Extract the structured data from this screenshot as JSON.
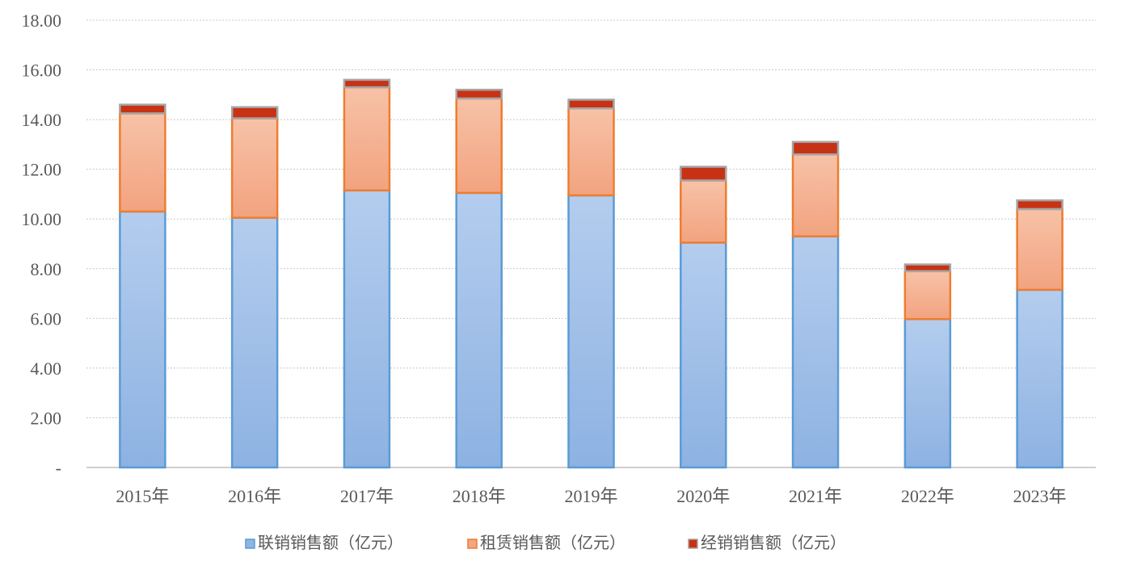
{
  "chart_data": {
    "type": "bar",
    "stacked": true,
    "categories": [
      "2015年",
      "2016年",
      "2017年",
      "2018年",
      "2019年",
      "2020年",
      "2021年",
      "2022年",
      "2023年"
    ],
    "series": [
      {
        "name": "联销销售额（亿元）",
        "values": [
          10.3,
          10.05,
          11.15,
          11.05,
          10.95,
          9.05,
          9.3,
          5.97,
          7.15
        ],
        "color": "#8fb4e3"
      },
      {
        "name": "租赁销售额（亿元）",
        "values": [
          3.95,
          4.0,
          4.15,
          3.8,
          3.5,
          2.5,
          3.3,
          1.93,
          3.25
        ],
        "color": "#f4a582"
      },
      {
        "name": "经销销售额（亿元）",
        "values": [
          0.35,
          0.45,
          0.3,
          0.35,
          0.35,
          0.55,
          0.5,
          0.27,
          0.35
        ],
        "color": "#c0392b"
      }
    ],
    "yticks": [
      "-",
      "2.00",
      "4.00",
      "6.00",
      "8.00",
      "10.00",
      "12.00",
      "14.00",
      "16.00",
      "18.00"
    ],
    "ylim": [
      0,
      18
    ],
    "title": "",
    "xlabel": "",
    "ylabel": "",
    "grid": true,
    "legend_position": "bottom"
  }
}
